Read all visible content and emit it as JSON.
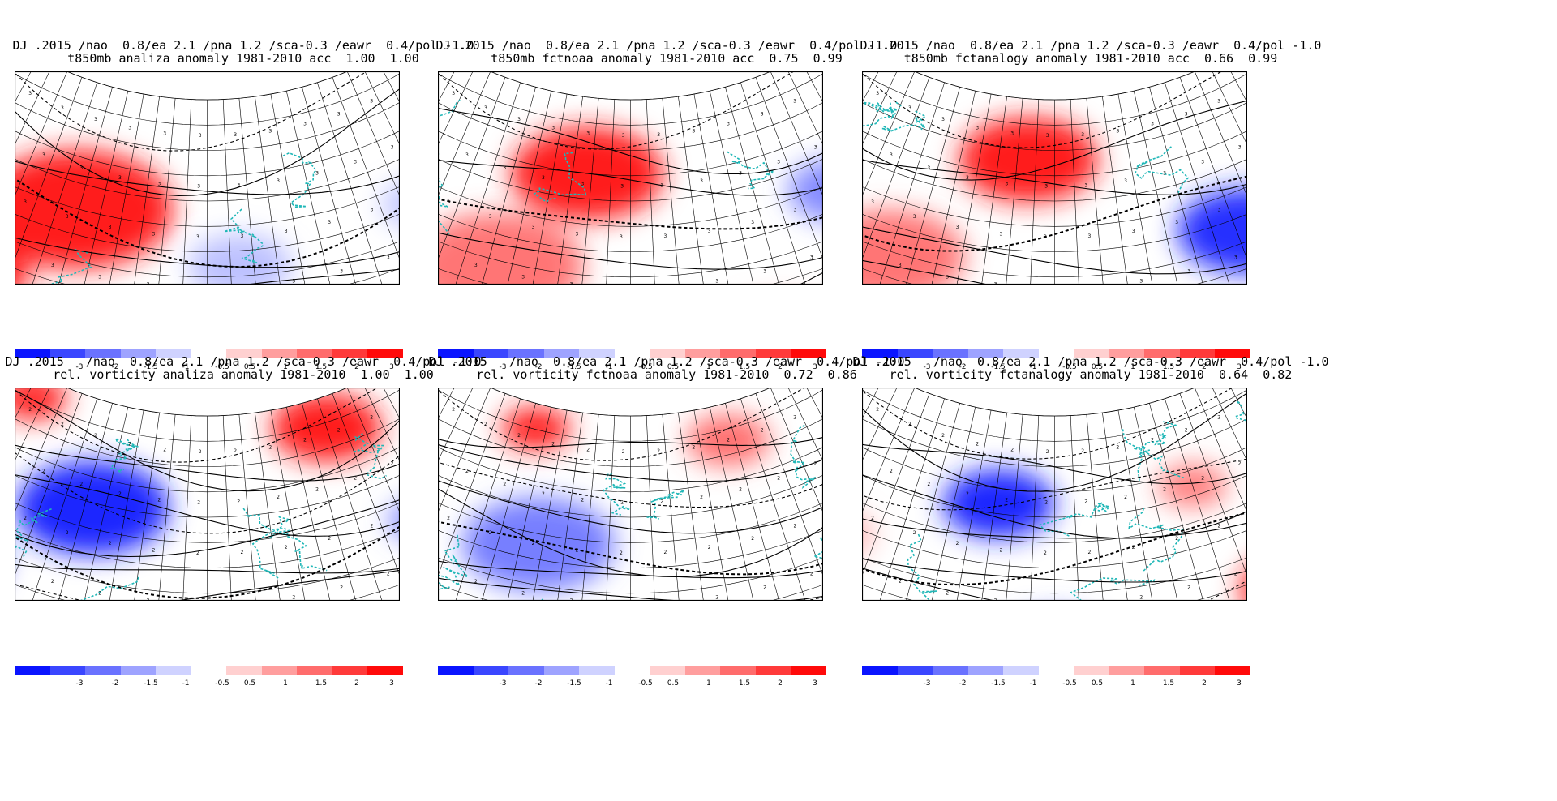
{
  "panels": [
    {
      "id": "p1",
      "line1": "DJ .2015 /nao  0.8/ea 2.1 /pna 1.2 /sca-0.3 /eawr  0.4/pol -1.0",
      "line2": "t850mb analiza anomaly 1981-2010 acc  1.00  1.00",
      "variant": "t850",
      "seed": 1
    },
    {
      "id": "p2",
      "line1": "DJ .2015 /nao  0.8/ea 2.1 /pna 1.2 /sca-0.3 /eawr  0.4/pol -1.0",
      "line2": "t850mb fctnoaa anomaly 1981-2010 acc  0.75  0.99",
      "variant": "t850",
      "seed": 2
    },
    {
      "id": "p3",
      "line1": "DJ .2015 /nao  0.8/ea 2.1 /pna 1.2 /sca-0.3 /eawr  0.4/pol -1.0",
      "line2": "t850mb fctanalogy anomaly 1981-2010 acc  0.66  0.99",
      "variant": "t850",
      "seed": 3
    },
    {
      "id": "p4",
      "line1": "DJ .2015   /nao  0.8/ea 2.1 /pna 1.2 /sca-0.3 /eawr  0.4/pol -1.0",
      "line2": "rel. vorticity analiza anomaly 1981-2010  1.00  1.00",
      "variant": "vort",
      "seed": 4
    },
    {
      "id": "p5",
      "line1": "DJ .2015   /nao  0.8/ea 2.1 /pna 1.2 /sca-0.3 /eawr  0.4/pol -1.0",
      "line2": "rel. vorticity fctnoaa anomaly 1981-2010  0.72  0.86",
      "variant": "vort",
      "seed": 5
    },
    {
      "id": "p6",
      "line1": "DJ .2015   /nao  0.8/ea 2.1 /pna 1.2 /sca-0.3 /eawr  0.4/pol -1.0",
      "line2": "rel. vorticity fctanalogy anomaly 1981-2010  0.64  0.82",
      "variant": "vort",
      "seed": 6
    }
  ],
  "colorbar": {
    "labels": [
      "-3",
      "-2",
      "-1.5",
      "-1",
      "-0.5",
      "0.5",
      "1",
      "1.5",
      "2",
      "3"
    ],
    "colors_neg": [
      "#0a14ff",
      "#3a46ff",
      "#6a72ff",
      "#9ea3ff",
      "#cfd2ff"
    ],
    "colors_pos": [
      "#ffd0d0",
      "#ff9e9e",
      "#ff6c6c",
      "#ff3a3a",
      "#ff0a0a"
    ]
  },
  "map_colors": {
    "coast": "#1fb7b7",
    "grid": "#000000",
    "contour": "#000000"
  }
}
